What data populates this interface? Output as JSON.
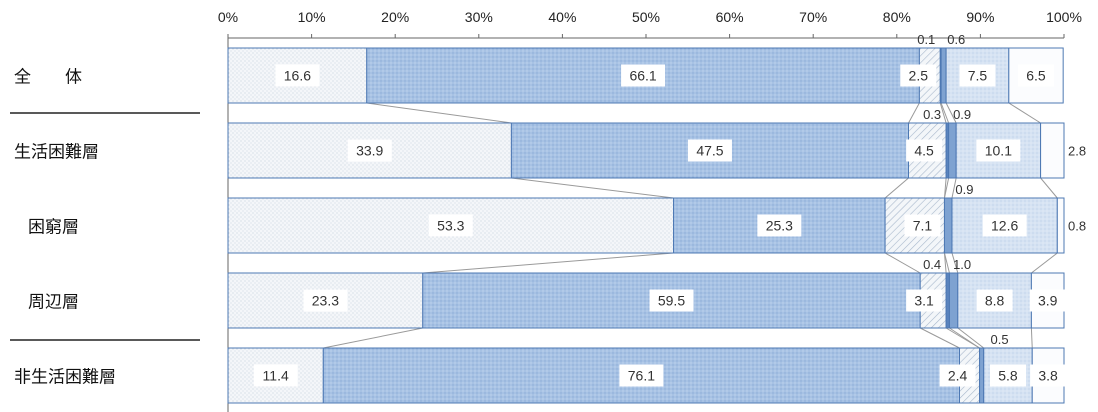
{
  "chart_data": {
    "type": "bar",
    "orientation": "horizontal",
    "stacked": "100%",
    "title": "",
    "xlim": [
      0,
      100
    ],
    "x_ticks": [
      "0%",
      "10%",
      "20%",
      "30%",
      "40%",
      "50%",
      "60%",
      "70%",
      "80%",
      "90%",
      "100%"
    ],
    "categories": [
      "全　　体",
      "生活困難層",
      "困窮層",
      "周辺層",
      "非生活困難層"
    ],
    "category_indent": [
      false,
      false,
      true,
      true,
      false
    ],
    "series": [
      {
        "values": [
          16.6,
          33.9,
          53.3,
          23.3,
          11.4
        ],
        "fill": "light-dotted",
        "color": "#f2f5f8"
      },
      {
        "values": [
          66.1,
          47.5,
          25.3,
          59.5,
          76.1
        ],
        "fill": "blue-dotted",
        "color": "#a9c4e6"
      },
      {
        "values": [
          2.5,
          4.5,
          7.1,
          3.1,
          2.4
        ],
        "fill": "diagonal-hatch",
        "color": "#dfe7f0"
      },
      {
        "values": [
          0.1,
          0.3,
          0.0,
          0.4,
          0.0
        ],
        "fill": "dark-blue",
        "color": "#5d86c0"
      },
      {
        "values": [
          0.6,
          0.9,
          0.9,
          1.0,
          0.5
        ],
        "fill": "blue",
        "color": "#7ea0cf"
      },
      {
        "values": [
          7.5,
          10.1,
          12.6,
          8.8,
          5.8
        ],
        "fill": "light-blue-dotted",
        "color": "#d3e1f2"
      },
      {
        "values": [
          6.5,
          2.8,
          0.8,
          3.9,
          3.8
        ],
        "fill": "white",
        "color": "#fafbfd"
      }
    ],
    "labels": [
      [
        "16.6",
        "66.1",
        "2.5",
        "0.1",
        "0.6",
        "7.5",
        "6.5"
      ],
      [
        "33.9",
        "47.5",
        "4.5",
        "0.3",
        "0.9",
        "10.1",
        "2.8"
      ],
      [
        "53.3",
        "25.3",
        "7.1",
        "",
        "0.9",
        "12.6",
        "0.8"
      ],
      [
        "23.3",
        "59.5",
        "3.1",
        "0.4",
        "1.0",
        "8.8",
        "3.9"
      ],
      [
        "11.4",
        "76.1",
        "2.4",
        "",
        "0.5",
        "5.8",
        "3.8"
      ]
    ],
    "connectors": true
  }
}
